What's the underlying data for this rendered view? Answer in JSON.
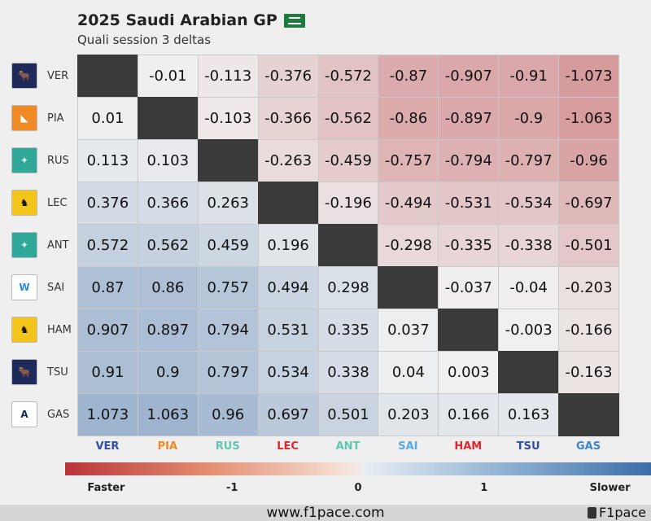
{
  "header": {
    "title": "2025 Saudi Arabian GP",
    "subtitle": "Quali session 3 deltas",
    "flag": "saudi-arabia-flag-icon"
  },
  "chart_data": {
    "type": "heatmap",
    "drivers": [
      "VER",
      "PIA",
      "RUS",
      "LEC",
      "ANT",
      "SAI",
      "HAM",
      "TSU",
      "GAS"
    ],
    "team_logos": [
      "red-bull-logo-icon",
      "mclaren-logo-icon",
      "mercedes-logo-icon",
      "ferrari-logo-icon",
      "mercedes-logo-icon",
      "williams-logo-icon",
      "ferrari-logo-icon",
      "red-bull-logo-icon",
      "alpine-logo-icon"
    ],
    "team_colors": [
      "#2f4fa8",
      "#f08a24",
      "#5fc7b0",
      "#e0262f",
      "#5fc7b0",
      "#5aa8e8",
      "#e0262f",
      "#2f4fa8",
      "#3d85c6"
    ],
    "matrix": [
      [
        null,
        "-0.01",
        "-0.113",
        "-0.376",
        "-0.572",
        "-0.87",
        "-0.907",
        "-0.91",
        "-1.073"
      ],
      [
        "0.01",
        null,
        "-0.103",
        "-0.366",
        "-0.562",
        "-0.86",
        "-0.897",
        "-0.9",
        "-1.063"
      ],
      [
        "0.113",
        "0.103",
        null,
        "-0.263",
        "-0.459",
        "-0.757",
        "-0.794",
        "-0.797",
        "-0.96"
      ],
      [
        "0.376",
        "0.366",
        "0.263",
        null,
        "-0.196",
        "-0.494",
        "-0.531",
        "-0.534",
        "-0.697"
      ],
      [
        "0.572",
        "0.562",
        "0.459",
        "0.196",
        null,
        "-0.298",
        "-0.335",
        "-0.338",
        "-0.501"
      ],
      [
        "0.87",
        "0.86",
        "0.757",
        "0.494",
        "0.298",
        null,
        "-0.037",
        "-0.04",
        "-0.203"
      ],
      [
        "0.907",
        "0.897",
        "0.794",
        "0.531",
        "0.335",
        "0.037",
        null,
        "-0.003",
        "-0.166"
      ],
      [
        "0.91",
        "0.9",
        "0.797",
        "0.534",
        "0.338",
        "0.04",
        "0.003",
        null,
        "-0.163"
      ],
      [
        "1.073",
        "1.063",
        "0.96",
        "0.697",
        "0.501",
        "0.203",
        "0.166",
        "0.163",
        null
      ]
    ],
    "colorbar": {
      "range": [
        -2,
        2
      ],
      "tick_labels": [
        "Faster",
        "-1",
        "0",
        "1",
        "Slower"
      ],
      "negative_color": "#b8353a",
      "neutral_color": "#f0f0f0",
      "positive_color": "#3d6ea8"
    }
  },
  "footer": {
    "url": "www.f1pace.com",
    "brand": "F1pace"
  }
}
